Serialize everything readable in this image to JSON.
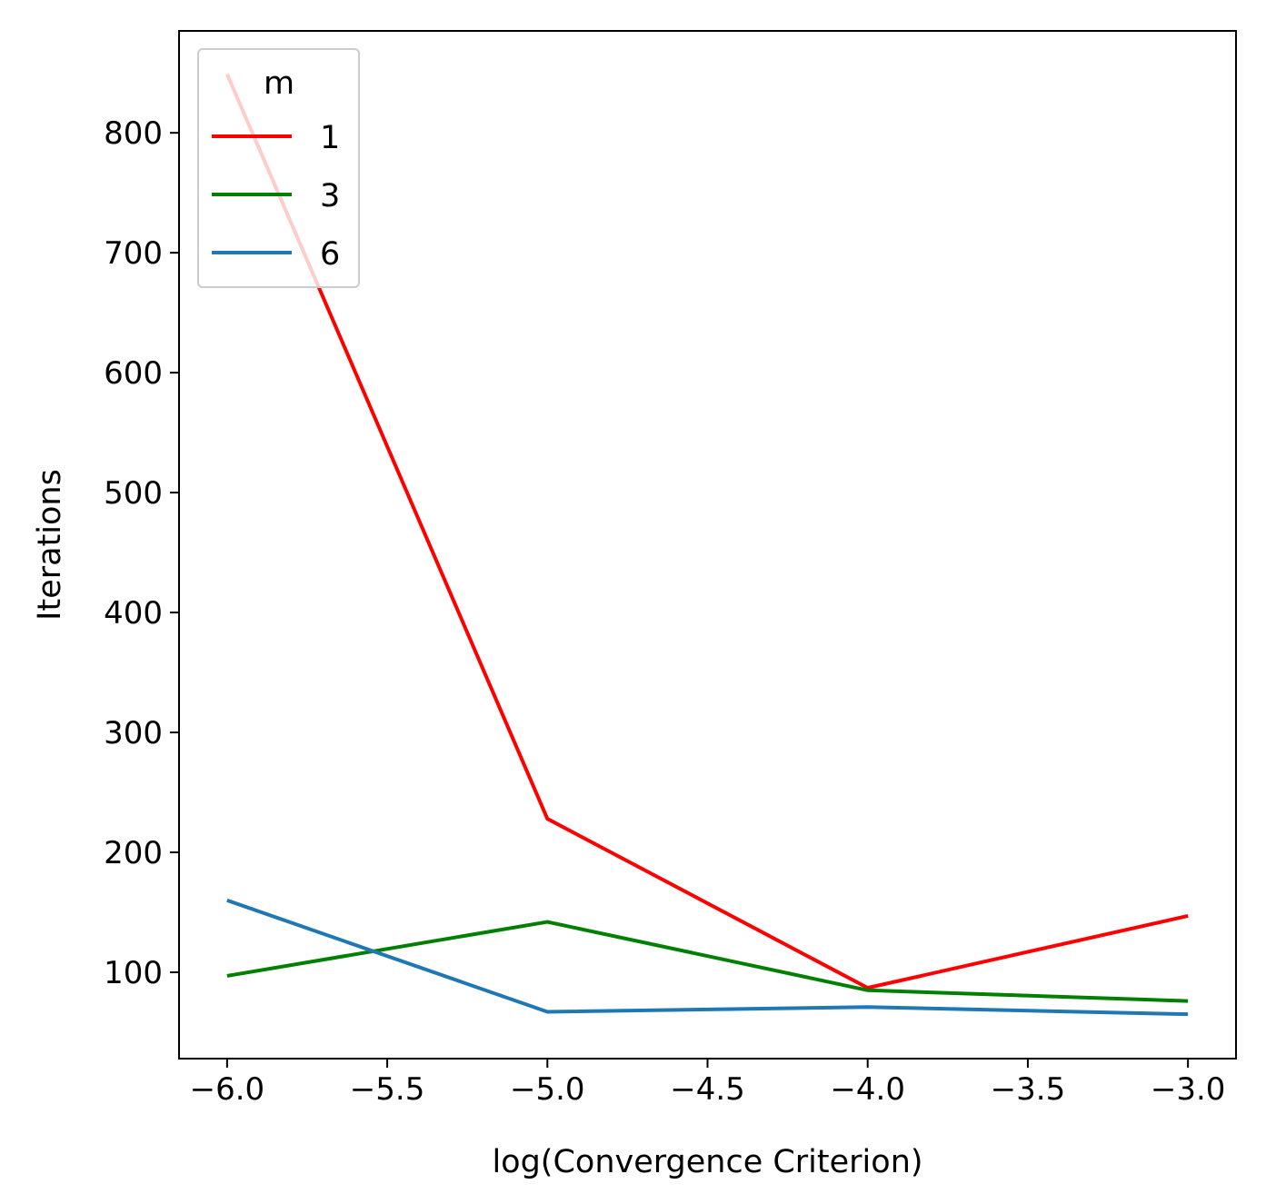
{
  "chart_data": {
    "type": "line",
    "title": "",
    "xlabel": "log(Convergence Criterion)",
    "ylabel": "Iterations",
    "xlim": [
      -6.15,
      -2.85
    ],
    "ylim": [
      28,
      885
    ],
    "xticks": [
      -6.0,
      -5.5,
      -5.0,
      -4.5,
      -4.0,
      -3.5,
      -3.0
    ],
    "xtick_labels": [
      "−6.0",
      "−5.5",
      "−5.0",
      "−4.5",
      "−4.0",
      "−3.5",
      "−3.0"
    ],
    "yticks": [
      100,
      200,
      300,
      400,
      500,
      600,
      700,
      800
    ],
    "ytick_labels": [
      "100",
      "200",
      "300",
      "400",
      "500",
      "600",
      "700",
      "800"
    ],
    "x": [
      -6,
      -5,
      -4,
      -3
    ],
    "grid": false,
    "legend": {
      "title": "m",
      "position": "top-left"
    },
    "series": [
      {
        "name": "1",
        "color": "#ff0000",
        "values": [
          849,
          228,
          87,
          147
        ]
      },
      {
        "name": "3",
        "color": "#008000",
        "values": [
          97,
          142,
          85,
          76
        ]
      },
      {
        "name": "6",
        "color": "#1f77b4",
        "values": [
          160,
          67,
          71,
          65
        ]
      }
    ]
  }
}
